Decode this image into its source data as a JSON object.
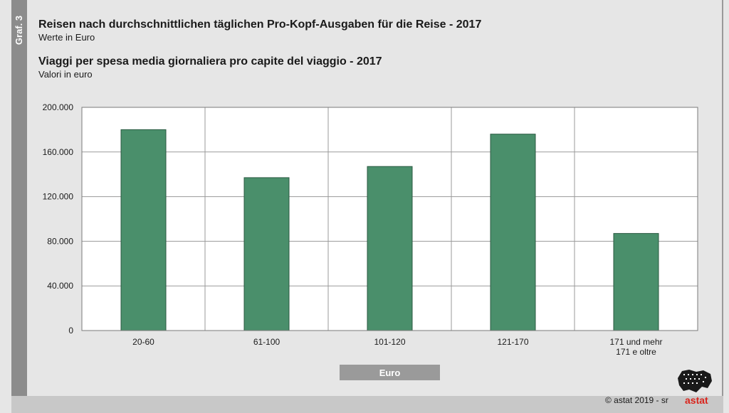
{
  "side_label": "Graf. 3",
  "header": {
    "title_de": "Reisen nach durchschnittlichen täglichen Pro-Kopf-Ausgaben für die Reise - 2017",
    "subtitle_de": "Werte in Euro",
    "title_it": "Viaggi per spesa media giornaliera pro capite del viaggio - 2017",
    "subtitle_it": "Valori in euro"
  },
  "legend": {
    "label": "Euro"
  },
  "footer": {
    "copyright": "© astat 2019 - sr",
    "logo_text": "astat"
  },
  "colors": {
    "bar": "#4a8f6b",
    "bar_stroke": "#2b5a42",
    "grid": "#9a9a9a",
    "plot_bg": "#ffffff"
  },
  "chart_data": {
    "type": "bar",
    "categories": [
      [
        "20-60"
      ],
      [
        "61-100"
      ],
      [
        "101-120"
      ],
      [
        "121-170"
      ],
      [
        "171 und mehr",
        "171 e oltre"
      ]
    ],
    "values": [
      180000,
      137000,
      147000,
      176000,
      87000
    ],
    "yticks": [
      0,
      40000,
      80000,
      120000,
      160000,
      200000
    ],
    "ytick_labels": [
      "0",
      "40.000",
      "80.000",
      "120.000",
      "160.000",
      "200.000"
    ],
    "ylim": [
      0,
      200000
    ],
    "grid": true
  }
}
